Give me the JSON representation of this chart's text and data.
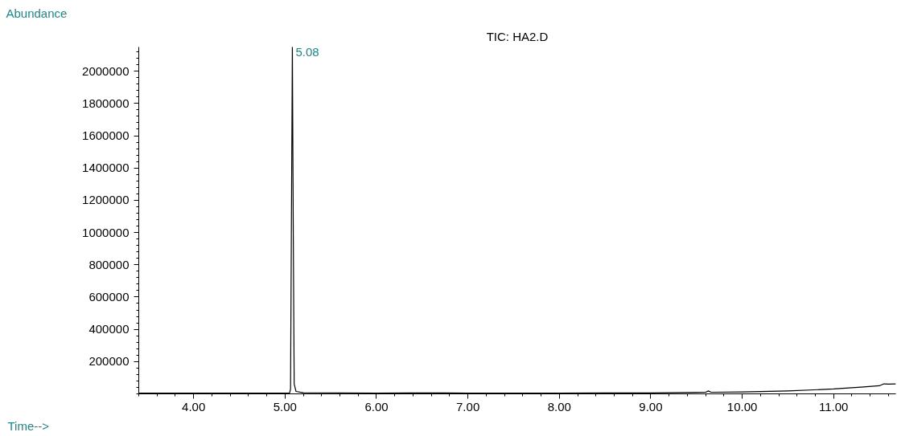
{
  "chart_data": {
    "type": "line",
    "title": "TIC: HA2.D",
    "xlabel": "Time-->",
    "ylabel": "Abundance",
    "xlim": [
      3.4,
      11.68
    ],
    "ylim": [
      0,
      2150000
    ],
    "xticks": [
      {
        "value": 4,
        "label": "4.00"
      },
      {
        "value": 5,
        "label": "5.00"
      },
      {
        "value": 6,
        "label": "6.00"
      },
      {
        "value": 7,
        "label": "7.00"
      },
      {
        "value": 8,
        "label": "8.00"
      },
      {
        "value": 9,
        "label": "9.00"
      },
      {
        "value": 10,
        "label": "10.00"
      },
      {
        "value": 11,
        "label": "11.00"
      }
    ],
    "yticks": [
      200000,
      400000,
      600000,
      800000,
      1000000,
      1200000,
      1400000,
      1600000,
      1800000,
      2000000
    ],
    "grid": false,
    "marker": "none",
    "line_style": "solid",
    "annotations": [
      {
        "text": "5.08",
        "x": 5.08,
        "y": 2150000
      }
    ],
    "series": [
      {
        "color": "#000000",
        "x": [
          3.4,
          4.0,
          4.5,
          5.0,
          5.05,
          5.06,
          5.07,
          5.08,
          5.09,
          5.1,
          5.12,
          5.2,
          6.0,
          6.75,
          7.0,
          8.0,
          8.5,
          9.0,
          9.5,
          9.6,
          9.63,
          9.66,
          10.0,
          10.5,
          11.0,
          11.3,
          11.5,
          11.55,
          11.6,
          11.68
        ],
        "values": [
          5000,
          5000,
          5000,
          5000,
          6000,
          30000,
          1100000,
          2150000,
          1000000,
          60000,
          15000,
          7000,
          5000,
          6000,
          5000,
          5000,
          6000,
          6000,
          9000,
          10000,
          18000,
          10000,
          12000,
          18000,
          30000,
          42000,
          50000,
          62000,
          60000,
          62000
        ]
      }
    ]
  }
}
